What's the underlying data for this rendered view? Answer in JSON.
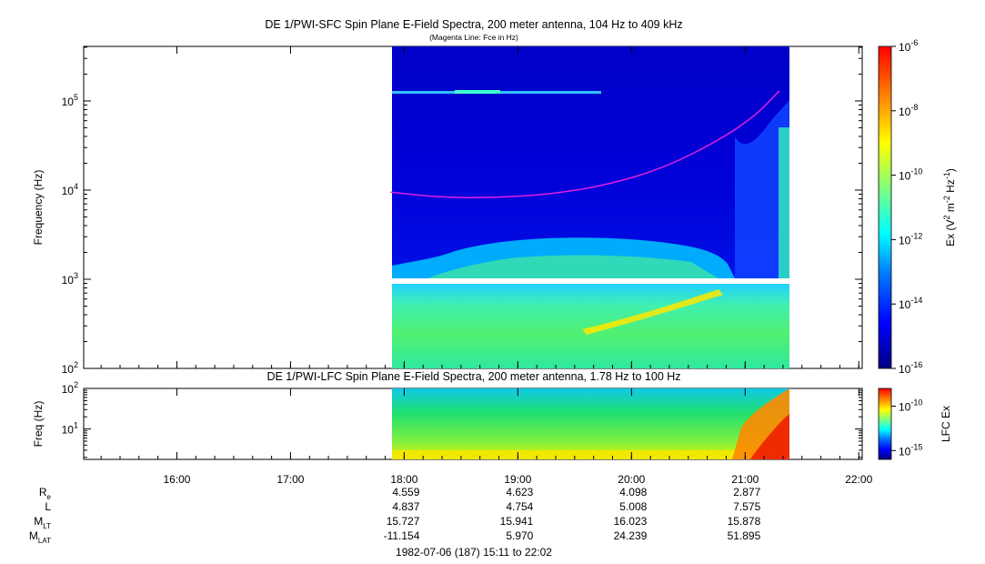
{
  "chart_data": [
    {
      "type": "heatmap",
      "title": "DE 1/PWI-SFC  Spin Plane E-Field Spectra, 200 meter antenna, 104 Hz to 409 kHz",
      "subtitle": "(Magenta Line: Fce in Hz)",
      "ylabel": "Frequency (Hz)",
      "yscale": "log",
      "ylim": [
        100,
        409000
      ],
      "y_ticks": [
        "10^2",
        "10^3",
        "10^4",
        "10^5"
      ],
      "xlim_hours": [
        15.18,
        22.03
      ],
      "data_span_hours": [
        17.88,
        21.36
      ],
      "colorbar": {
        "label": "Ex (V^2 m^-2 Hz^-1)",
        "scale": "log",
        "range": [
          1e-16,
          1e-06
        ],
        "ticks": [
          "10^-6",
          "10^-8",
          "10^-10",
          "10^-12",
          "10^-14",
          "10^-16"
        ]
      },
      "overlay": {
        "name": "Fce in Hz",
        "color": "#e020e0",
        "x_hours": [
          17.88,
          18.3,
          18.8,
          19.3,
          19.8,
          20.3,
          20.8,
          21.1,
          21.3
        ],
        "y_hz": [
          9500,
          8300,
          8200,
          9000,
          11500,
          18000,
          38000,
          70000,
          130000
        ]
      }
    },
    {
      "type": "heatmap",
      "title": "DE 1/PWI-LFC  Spin Plane E-Field Spectra, 200 meter antenna, 1.78 Hz to 100 Hz",
      "ylabel": "Freq (Hz)",
      "yscale": "log",
      "ylim": [
        1.78,
        100
      ],
      "y_ticks": [
        "10^1",
        "10^2"
      ],
      "colorbar": {
        "label": "LFC Ex",
        "scale": "log",
        "range": [
          1e-16,
          1e-08
        ],
        "ticks": [
          "10^-10",
          "10^-15"
        ]
      }
    }
  ],
  "x_axis": {
    "tick_labels": [
      "16:00",
      "17:00",
      "18:00",
      "19:00",
      "20:00",
      "21:00",
      "22:00"
    ],
    "tick_hours": [
      16,
      17,
      18,
      19,
      20,
      21,
      22
    ]
  },
  "ephemeris": {
    "labels": [
      "R",
      "L",
      "M",
      "M"
    ],
    "label_subscripts": [
      "e",
      "",
      "LT",
      "LAT"
    ],
    "columns": [
      {
        "time": "18:00",
        "values": [
          "4.559",
          "4.837",
          "15.727",
          "-11.154"
        ]
      },
      {
        "time": "19:00",
        "values": [
          "4.623",
          "4.754",
          "15.941",
          "5.970"
        ]
      },
      {
        "time": "20:00",
        "values": [
          "4.098",
          "5.008",
          "16.023",
          "24.239"
        ]
      },
      {
        "time": "21:00",
        "values": [
          "2.877",
          "7.575",
          "15.878",
          "51.895"
        ]
      }
    ]
  },
  "footer": "1982-07-06 (187) 15:11 to 22:02",
  "colors": {
    "magenta_line": "#e020e0",
    "background": "#ffffff",
    "colormap": [
      "#00007f",
      "#0000ff",
      "#007fff",
      "#00ffff",
      "#7fff7f",
      "#ffff00",
      "#ff7f00",
      "#ff0000"
    ]
  }
}
